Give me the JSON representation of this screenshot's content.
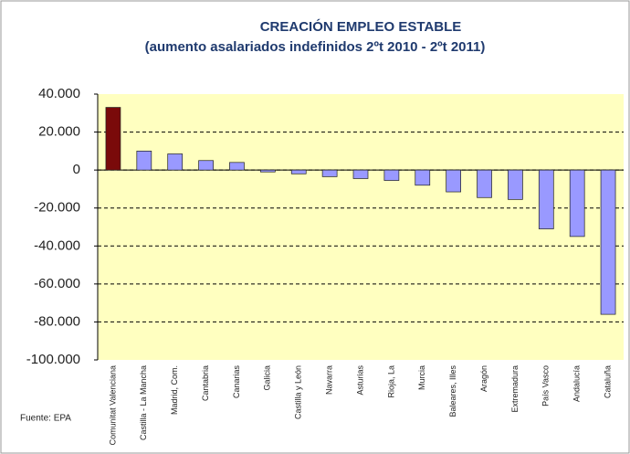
{
  "chart_data": {
    "type": "bar",
    "title": "CREACIÓN EMPLEO ESTABLE",
    "subtitle": "(aumento asalariados indefinidos 2ºt 2010 - 2ºt 2011)",
    "note": "Fuente: EPA",
    "categories": [
      "Comunitat Valenciana",
      "Castilla - La Mancha",
      "Madrid, Com.",
      "Cantabria",
      "Canarias",
      "Galicia",
      "Castilla y León",
      "Navarra",
      "Asturias",
      "Rioja, La",
      "Murcia",
      "Baleares, Illes",
      "Aragón",
      "Extremadura",
      "País Vasco",
      "Andalucía",
      "Cataluña"
    ],
    "values": [
      33000,
      10000,
      8500,
      5000,
      4000,
      -1000,
      -2000,
      -3500,
      -4500,
      -5500,
      -8000,
      -11500,
      -14500,
      -15500,
      -31000,
      -35000,
      -76000
    ],
    "colors": [
      "#7a0a0a",
      "#9999ff",
      "#9999ff",
      "#9999ff",
      "#9999ff",
      "#9999ff",
      "#9999ff",
      "#9999ff",
      "#9999ff",
      "#9999ff",
      "#9999ff",
      "#9999ff",
      "#9999ff",
      "#9999ff",
      "#9999ff",
      "#9999ff",
      "#9999ff"
    ],
    "ylim": [
      -100000,
      40000
    ],
    "yticks": [
      {
        "value": -100000,
        "label": "-100.000"
      },
      {
        "value": -80000,
        "label": "-80.000"
      },
      {
        "value": -60000,
        "label": "-60.000"
      },
      {
        "value": -40000,
        "label": "-40.000"
      },
      {
        "value": -20000,
        "label": "-20.000"
      },
      0,
      {
        "value": 20000,
        "label": "20.000"
      },
      {
        "value": 40000,
        "label": "40.000"
      }
    ],
    "grid": true
  }
}
